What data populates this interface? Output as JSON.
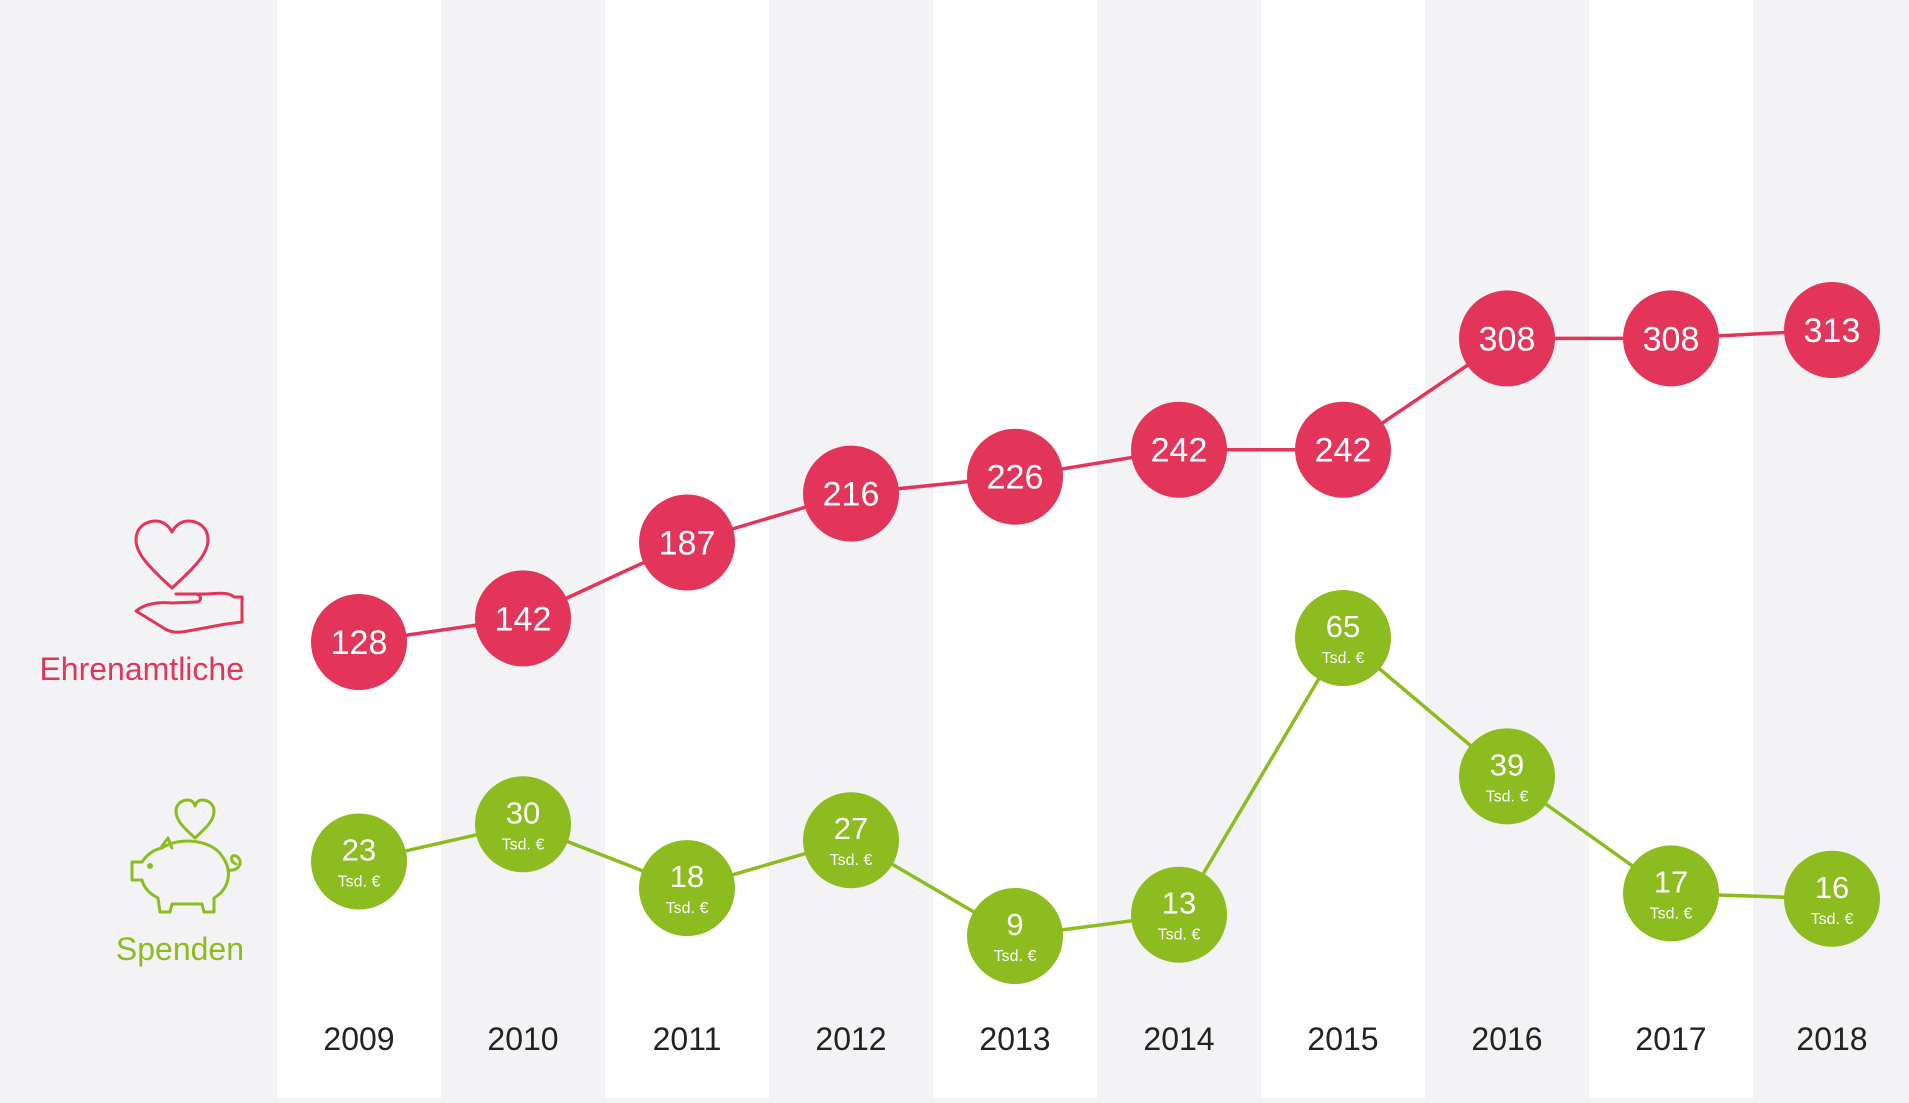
{
  "colors": {
    "background": "#f3f3f5",
    "column_light": "#ffffff",
    "volunteers": "#e3355a",
    "donations": "#8cbc1f",
    "year_text": "#222222",
    "bubble_text": "#ffffff"
  },
  "icons": {
    "volunteers": "heart-in-hand-icon",
    "donations": "piggy-bank-heart-icon"
  },
  "chart_data": {
    "type": "line",
    "categories": [
      "2009",
      "2010",
      "2011",
      "2012",
      "2013",
      "2014",
      "2015",
      "2016",
      "2017",
      "2018"
    ],
    "series": [
      {
        "key": "volunteers",
        "name": "Ehrenamtliche",
        "values": [
          128,
          142,
          187,
          216,
          226,
          242,
          242,
          308,
          308,
          313
        ],
        "unit_label": ""
      },
      {
        "key": "donations",
        "name": "Spenden",
        "values": [
          23,
          30,
          18,
          27,
          9,
          13,
          65,
          39,
          17,
          16
        ],
        "unit_label": "Tsd. €"
      }
    ],
    "grid": false,
    "legend_position": "left"
  }
}
